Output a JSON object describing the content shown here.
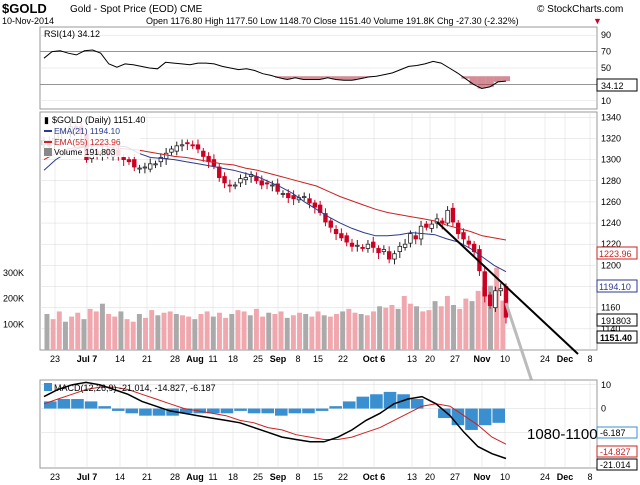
{
  "header": {
    "symbol": "$GOLD",
    "name": "Gold - Spot Price (EOD) CME",
    "watermark": "© StockCharts.com",
    "date": "10-Nov-2014",
    "ohlc": "Open 1176.80  High 1177.50  Low 1148.70  Close 1151.40  Volume 191.8K  Chg -27.30 (-2.32%)"
  },
  "colors": {
    "up": "#222222",
    "down": "#cc0022",
    "ema21": "#2b3a8c",
    "ema55": "#cc2222",
    "rsi": "#000000",
    "macd_hist": "#3a8fd0",
    "vol_up": "#aaaaaa",
    "vol_down": "#f0a8ae",
    "grid": "#d9d9d9",
    "annotation": "#000000"
  },
  "chart_data": [
    {
      "type": "line",
      "panel": "RSI",
      "title": "RSI(14) 34.12",
      "ylim": [
        0,
        100
      ],
      "y_ticks": [
        90,
        70,
        50,
        30,
        10
      ],
      "reference_lines": [
        70,
        30
      ],
      "last_value_label": "34.12",
      "series": [
        {
          "name": "RSI(14)",
          "values": [
            62,
            70,
            71,
            68,
            66,
            71,
            72,
            68,
            55,
            51,
            55,
            54,
            52,
            50,
            49,
            57,
            56,
            55,
            54,
            56,
            56,
            55,
            52,
            50,
            48,
            49,
            47,
            43,
            41,
            38,
            36,
            38,
            36,
            36,
            36,
            38,
            36,
            35,
            35,
            37,
            39,
            40,
            42,
            44,
            48,
            52,
            53,
            55,
            58,
            56,
            50,
            44,
            37,
            30,
            25,
            27,
            33,
            34
          ]
        }
      ]
    },
    {
      "type": "candlestick",
      "panel": "price",
      "title": "$GOLD (Daily) 1151.40",
      "ylim": [
        1120,
        1345
      ],
      "y_ticks": [
        1340,
        1320,
        1300,
        1280,
        1260,
        1240,
        1220,
        1200,
        1180,
        1160,
        1140
      ],
      "x_ticks": [
        "23",
        "Jul 7",
        "14",
        "21",
        "28",
        "Aug",
        "11",
        "18",
        "25",
        "Sep",
        "8",
        "15",
        "22",
        "Oct 6",
        "13",
        "20",
        "27",
        "Nov",
        "10",
        "24",
        "Dec",
        "8"
      ],
      "legend": [
        "EMA(21) 1194.10",
        "EMA(55) 1223.96",
        "Volume 191,803"
      ],
      "value_labels": [
        "1223.96",
        "1194.10",
        "1151.40",
        "191803"
      ],
      "closes": [
        1318,
        1313,
        1320,
        1326,
        1327,
        1331,
        1329,
        1325,
        1300,
        1310,
        1305,
        1308,
        1304,
        1308,
        1304,
        1300,
        1298,
        1293,
        1292,
        1293,
        1296,
        1296,
        1302,
        1306,
        1310,
        1313,
        1314,
        1315,
        1313,
        1310,
        1303,
        1298,
        1294,
        1283,
        1278,
        1275,
        1276,
        1282,
        1283,
        1286,
        1280,
        1276,
        1277,
        1276,
        1270,
        1268,
        1264,
        1263,
        1264,
        1265,
        1259,
        1255,
        1250,
        1241,
        1236,
        1230,
        1226,
        1222,
        1218,
        1219,
        1216,
        1220,
        1217,
        1212,
        1215,
        1206,
        1211,
        1218,
        1220,
        1230,
        1225,
        1237,
        1236,
        1239,
        1244,
        1240,
        1252,
        1241,
        1230,
        1225,
        1220,
        1213,
        1195,
        1171,
        1162,
        1176,
        1178,
        1151
      ],
      "series": [
        {
          "name": "EMA(21)",
          "values": [
            1290,
            1300,
            1307,
            1311,
            1313,
            1315,
            1313,
            1312,
            1306,
            1302,
            1301,
            1300,
            1298,
            1296,
            1294,
            1292,
            1290,
            1287,
            1284,
            1279,
            1274,
            1268,
            1260,
            1253,
            1246,
            1240,
            1235,
            1231,
            1228,
            1228,
            1229,
            1231,
            1230,
            1229,
            1225,
            1222,
            1216,
            1208,
            1200,
            1194
          ]
        },
        {
          "name": "EMA(55)",
          "values": [
            1300,
            1306,
            1310,
            1312,
            1313,
            1313,
            1311,
            1310,
            1309,
            1307,
            1305,
            1303,
            1302,
            1300,
            1298,
            1296,
            1295,
            1292,
            1290,
            1287,
            1284,
            1281,
            1278,
            1275,
            1270,
            1265,
            1261,
            1257,
            1253,
            1250,
            1248,
            1246,
            1244,
            1242,
            1238,
            1235,
            1232,
            1228,
            1226,
            1224
          ]
        }
      ],
      "annotations": [
        {
          "text": "1080-1100"
        }
      ]
    },
    {
      "type": "bar",
      "panel": "volume",
      "ylim": [
        0,
        350
      ],
      "y_ticks": [
        "300K",
        "200K",
        "100K"
      ],
      "values": [
        140,
        120,
        150,
        110,
        130,
        145,
        120,
        160,
        150,
        180,
        140,
        130,
        150,
        120,
        110,
        140,
        125,
        155,
        135,
        145,
        150,
        140,
        135,
        130,
        120,
        140,
        150,
        130,
        145,
        125,
        140,
        155,
        150,
        135,
        160,
        130,
        145,
        140,
        150,
        125,
        135,
        145,
        140,
        130,
        150,
        135,
        130,
        140,
        150,
        160,
        145,
        140,
        135,
        150,
        170,
        165,
        175,
        160,
        210,
        180,
        170,
        150,
        155,
        190,
        170,
        210,
        175,
        160,
        200,
        190,
        230,
        245,
        250,
        320,
        192
      ]
    },
    {
      "type": "line",
      "panel": "MACD",
      "title": "MACD(12,26,9) -21.014, -14.827, -6.187",
      "ylim": [
        -25,
        12
      ],
      "y_ticks": [
        10,
        0,
        -10
      ],
      "last_value_labels": [
        "-6.187",
        "-14.827",
        "-21.014"
      ],
      "series": [
        {
          "name": "MACD",
          "values": [
            5,
            8,
            10,
            11,
            10,
            8,
            6,
            3,
            1,
            -1,
            -2,
            -3,
            -4,
            -5,
            -6,
            -8,
            -10,
            -12,
            -13,
            -14,
            -14,
            -12,
            -9,
            -5,
            -2,
            2,
            4,
            5,
            2,
            -3,
            -10,
            -16,
            -19,
            -21
          ]
        },
        {
          "name": "Signal",
          "values": [
            2,
            4,
            6,
            8,
            9,
            9,
            8,
            6,
            4,
            2,
            0,
            -1,
            -2,
            -3,
            -5,
            -6,
            -8,
            -9,
            -11,
            -12,
            -13,
            -13,
            -12,
            -10,
            -8,
            -5,
            -2,
            1,
            2,
            1,
            -3,
            -7,
            -12,
            -15
          ]
        },
        {
          "name": "Histogram",
          "values": [
            3,
            4,
            4,
            3,
            1,
            -1,
            -2,
            -3,
            -3,
            -3,
            -2,
            -2,
            -2,
            -2,
            -1,
            -2,
            -2,
            -3,
            -2,
            -2,
            -1,
            1,
            3,
            5,
            6,
            7,
            6,
            4,
            0,
            -4,
            -7,
            -9,
            -7,
            -6
          ]
        }
      ]
    }
  ]
}
